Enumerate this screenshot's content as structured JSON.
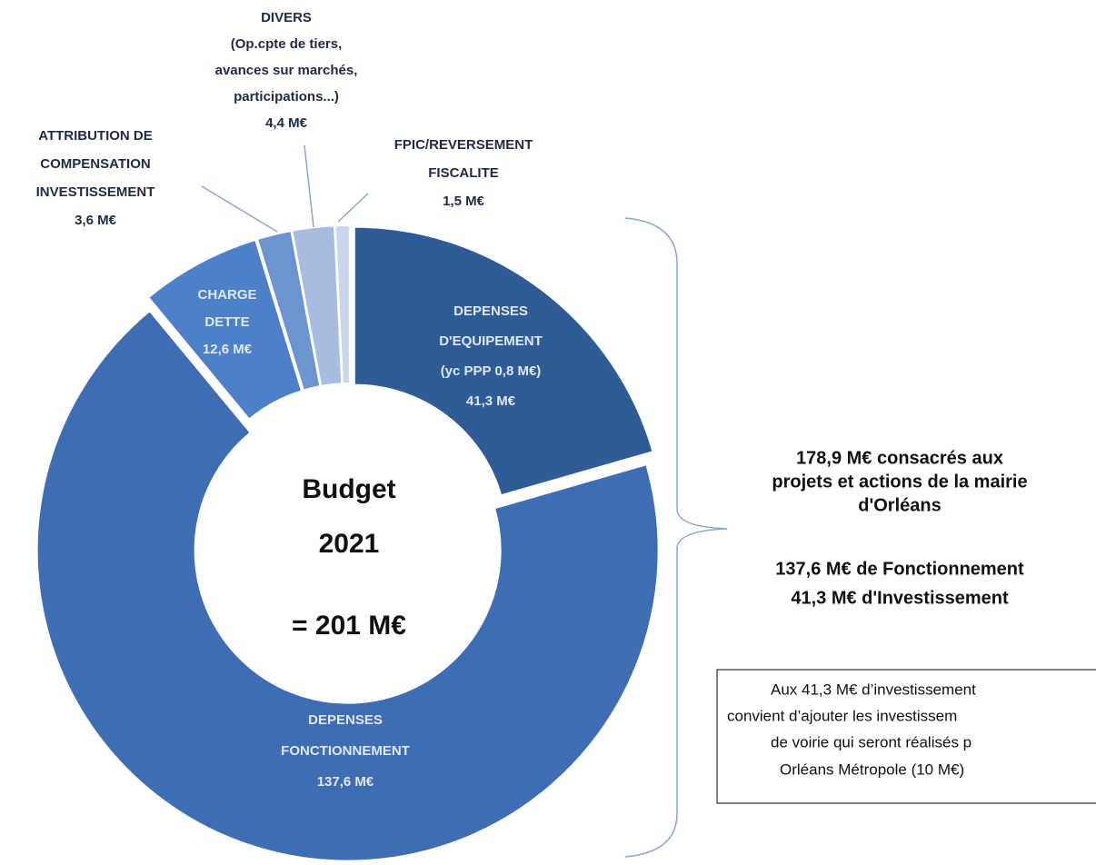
{
  "chart_data": {
    "type": "donut",
    "categories": [
      [
        "DEPENSES",
        "D'EQUIPEMENT",
        "(yc PPP 0,8 M€)"
      ],
      [
        "DEPENSES",
        "FONCTIONNEMENT"
      ],
      [
        "CHARGE",
        "DETTE"
      ],
      [
        "ATTRIBUTION  DE",
        "COMPENSATION",
        "INVESTISSEMENT"
      ],
      [
        "DIVERS",
        "(Op.cpte de tiers,",
        "avances sur marchés,",
        "participations...)"
      ],
      [
        "FPIC/REVERSEMENT",
        "FISCALITE"
      ]
    ],
    "values": [
      41.3,
      137.6,
      12.6,
      3.6,
      4.4,
      1.5
    ],
    "value_labels": [
      "41,3  M€",
      "137,6  M€",
      "12,6  M€",
      "3,6 M€",
      "4,4 M€",
      "1,5  M€"
    ],
    "colors": [
      "#2f5b97",
      "#3e6db4",
      "#4d80c6",
      "#6c95cf",
      "#a7bce0",
      "#cad6ec"
    ],
    "center_text": [
      "Budget",
      "2021",
      "= 201 M€"
    ],
    "annotation": [
      "178,9 M€ consacrés aux",
      "projets et actions de la mairie",
      "d'Orléans",
      "137,6 M€ de Fonctionnement",
      "41,3 M€ d'Investissement"
    ],
    "note": [
      "Aux 41,3 M€ d’investissement",
      "convient d’ajouter les investissem",
      "de voirie qui seront réalisés p",
      "Orléans Métropole (10 M€)"
    ]
  }
}
